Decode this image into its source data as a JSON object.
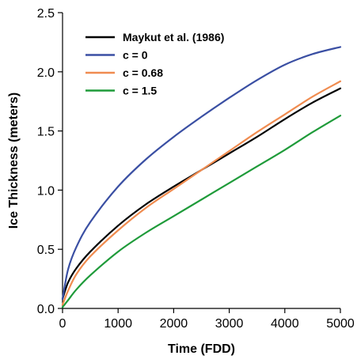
{
  "chart_data": {
    "type": "line",
    "title": "",
    "xlabel": "Time (FDD)",
    "ylabel": "Ice Thickness (meters)",
    "xlim": [
      0,
      5000
    ],
    "ylim": [
      0,
      2.5
    ],
    "xticks": [
      0,
      1000,
      2000,
      3000,
      4000,
      5000
    ],
    "yticks": [
      0.0,
      0.5,
      1.0,
      1.5,
      2.0,
      2.5
    ],
    "xtick_labels": [
      "0",
      "1000",
      "2000",
      "3000",
      "4000",
      "5000"
    ],
    "ytick_labels": [
      "0.0",
      "0.5",
      "1.0",
      "1.5",
      "2.0",
      "2.5"
    ],
    "grid": false,
    "legend": "top-left",
    "x": [
      0,
      100,
      250,
      500,
      1000,
      1500,
      2000,
      2500,
      3000,
      3500,
      4000,
      4500,
      5000
    ],
    "series": [
      {
        "name": "Maykut et al. (1986)",
        "color": "#000000",
        "values": [
          0.08,
          0.22,
          0.34,
          0.48,
          0.7,
          0.88,
          1.03,
          1.17,
          1.31,
          1.45,
          1.6,
          1.74,
          1.86
        ]
      },
      {
        "name": "c = 0",
        "color": "#3a4fa3",
        "values": [
          0.08,
          0.33,
          0.52,
          0.73,
          1.03,
          1.26,
          1.45,
          1.62,
          1.78,
          1.93,
          2.06,
          2.15,
          2.21
        ]
      },
      {
        "name": "c = 0.68",
        "color": "#f08c50",
        "values": [
          0.03,
          0.15,
          0.29,
          0.44,
          0.66,
          0.85,
          1.01,
          1.17,
          1.33,
          1.49,
          1.64,
          1.79,
          1.92
        ]
      },
      {
        "name": "c = 1.5",
        "color": "#1f9b3a",
        "values": [
          0.01,
          0.07,
          0.16,
          0.28,
          0.48,
          0.64,
          0.78,
          0.92,
          1.06,
          1.2,
          1.34,
          1.49,
          1.63
        ]
      }
    ]
  }
}
